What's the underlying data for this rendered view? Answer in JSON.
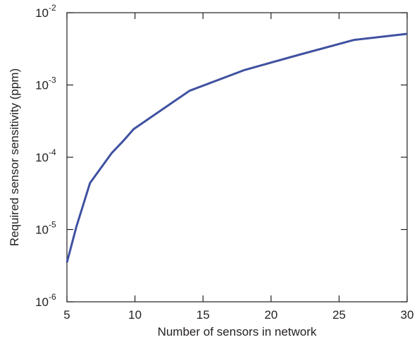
{
  "chart_data": {
    "type": "line",
    "title": "",
    "xlabel": "Number of sensors in network",
    "ylabel": "Required sensor sensitivity (ppm)",
    "xlim": [
      5,
      30
    ],
    "ylim": [
      1e-06,
      0.01
    ],
    "yscale": "log",
    "grid": false,
    "legend": "none",
    "x_ticks": [
      5,
      10,
      15,
      20,
      25,
      30
    ],
    "y_ticks": [
      {
        "value": 1e-06,
        "base": "10",
        "exp": "-6"
      },
      {
        "value": 1e-05,
        "base": "10",
        "exp": "-5"
      },
      {
        "value": 0.0001,
        "base": "10",
        "exp": "-4"
      },
      {
        "value": 0.001,
        "base": "10",
        "exp": "-3"
      },
      {
        "value": 0.01,
        "base": "10",
        "exp": "-2"
      }
    ],
    "series": [
      {
        "color": "#3f51a0",
        "x": [
          5,
          5.7,
          6.7,
          8.3,
          9.1,
          9.9,
          14,
          18,
          22,
          26.1,
          30
        ],
        "y": [
          3.5e-06,
          1.1e-05,
          4.4e-05,
          0.000115,
          0.000165,
          0.000245,
          0.00083,
          0.0016,
          0.0026,
          0.0042,
          0.0051
        ]
      }
    ]
  }
}
